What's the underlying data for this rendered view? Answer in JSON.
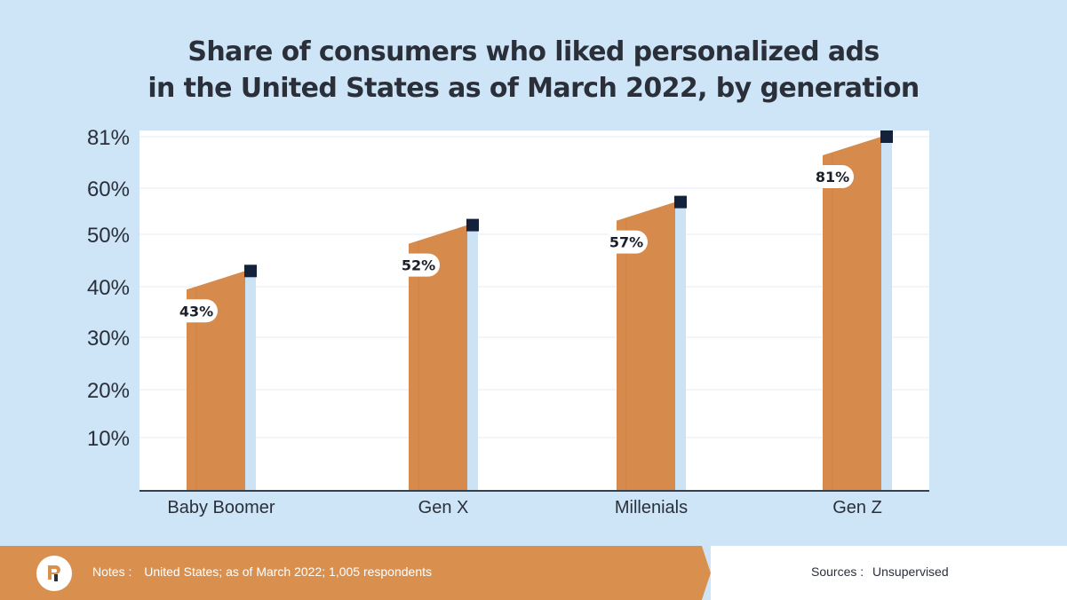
{
  "title": {
    "line1": "Share of consumers who liked personalized ads",
    "line2": "in the United States as of March 2022, by generation"
  },
  "chart_data": {
    "type": "bar",
    "title": "Share of consumers who liked personalized ads in the United States as of March 2022, by generation",
    "categories": [
      "Baby Boomer",
      "Gen X",
      "Millenials",
      "Gen Z"
    ],
    "values": [
      43,
      52,
      57,
      81
    ],
    "data_labels": [
      "43%",
      "52%",
      "57%",
      "81%"
    ],
    "y_ticks": [
      10,
      20,
      30,
      40,
      50,
      60,
      81
    ],
    "y_tick_labels": [
      "10%",
      "20%",
      "30%",
      "40%",
      "50%",
      "60%",
      "81%"
    ],
    "xlabel": "",
    "ylabel": "",
    "grid": true,
    "legend": "none",
    "bar_color": "#d68a4b",
    "bar_side_color": "#cce3f6",
    "marker_color": "#14213a"
  },
  "footer": {
    "notes_label": "Notes :",
    "notes_text": "United States; as of March 2022; 1,005 respondents",
    "sources_label": "Sources :",
    "sources_text": "Unsupervised"
  },
  "colors": {
    "background": "#cde5f7",
    "footer_orange": "#d9904f",
    "text_dark": "#2b2f3a"
  }
}
